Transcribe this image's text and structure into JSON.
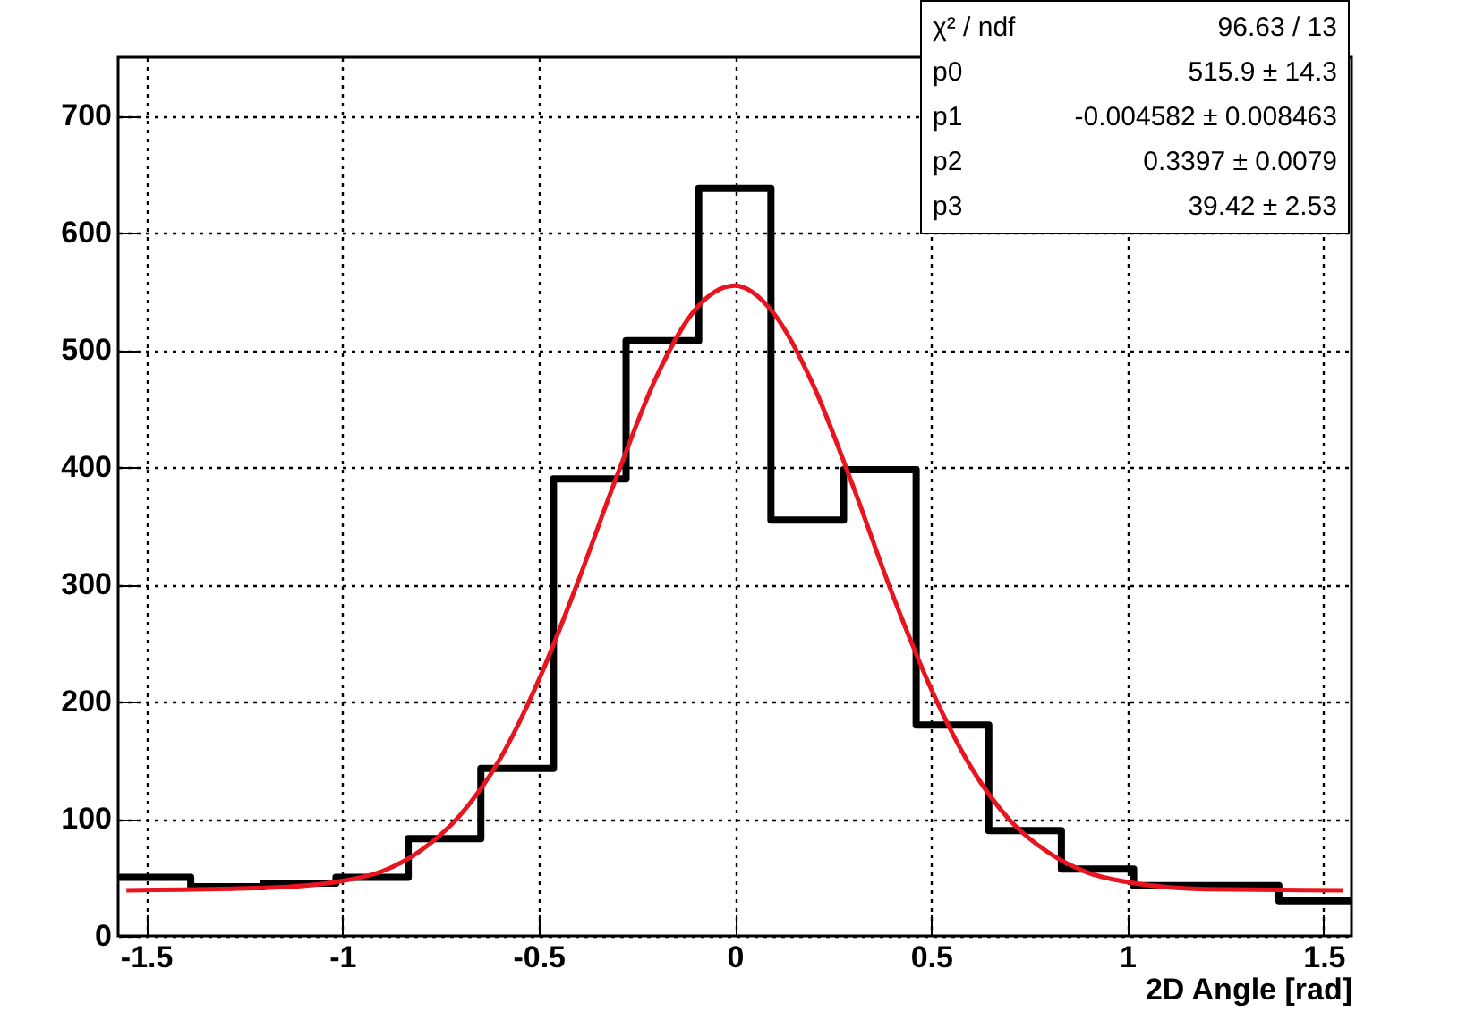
{
  "chart_data": {
    "type": "histogram",
    "xlabel": "2D Angle [rad]",
    "bins": [
      -1.571,
      -1.386,
      -1.201,
      -1.016,
      -0.832,
      -0.647,
      -0.462,
      -0.277,
      -0.092,
      0.092,
      0.277,
      0.462,
      0.647,
      0.832,
      1.016,
      1.201,
      1.386,
      1.571
    ],
    "values": [
      50,
      42,
      45,
      50,
      83,
      143,
      390,
      508,
      638,
      355,
      398,
      180,
      90,
      57,
      43,
      43,
      30
    ],
    "color": "#000000",
    "series": [
      {
        "type": "line",
        "color": "#e8141f",
        "x": [
          -1.55,
          -1.2,
          -1.0,
          -0.9,
          -0.8,
          -0.7,
          -0.6,
          -0.5,
          -0.4,
          -0.3,
          -0.2,
          -0.1,
          0,
          0.1,
          0.2,
          0.3,
          0.4,
          0.5,
          0.6,
          0.7,
          0.8,
          0.9,
          1.0,
          1.2,
          1.55
        ],
        "values": [
          39,
          41,
          47,
          55,
          73,
          103,
          150,
          218,
          302,
          393,
          477,
          535,
          555,
          531,
          470,
          385,
          293,
          211,
          145,
          99,
          71,
          54,
          46,
          40,
          39
        ]
      }
    ],
    "xlim": [
      -1.571,
      1.571
    ],
    "xticks": [
      -1.5,
      -1,
      -0.5,
      0,
      0.5,
      1,
      1.5
    ],
    "ylim": [
      0,
      750
    ],
    "yticks": [
      0,
      100,
      200,
      300,
      400,
      500,
      600,
      700
    ],
    "grid": true,
    "annotations": [
      "χ² / ndf",
      "96.63 / 13",
      "p0",
      "515.9 ± 14.3",
      "p1",
      "-0.004582 ± 0.008463",
      "p2",
      "0.3397 ± 0.0079",
      "p3",
      "39.42 ± 2.53"
    ]
  }
}
